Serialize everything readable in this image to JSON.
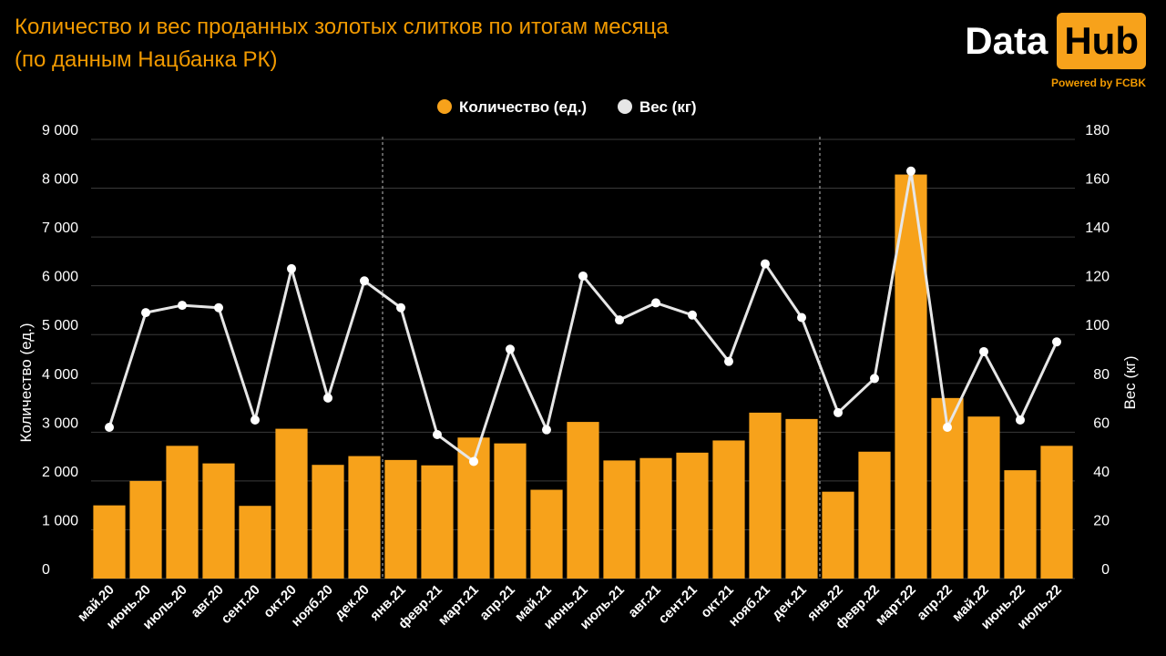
{
  "header": {
    "title_line1": "Количество и вес проданных золотых слитков по итогам месяца",
    "title_line2": "(по данным Нацбанка РК)"
  },
  "logo": {
    "word1": "Data",
    "word2": "Hub",
    "tagline": "Powered by FCBK"
  },
  "colors": {
    "bar": "#f7a21b",
    "line": "#e6e6e6",
    "grid": "#3a3a3a",
    "title": "#f29a00"
  },
  "chart_data": {
    "type": "bar",
    "categories": [
      "май.20",
      "июнь.20",
      "июль.20",
      "авг.20",
      "сент.20",
      "окт.20",
      "нояб.20",
      "дек.20",
      "янв.21",
      "февр.21",
      "март.21",
      "апр.21",
      "май.21",
      "июнь.21",
      "июль.21",
      "авг.21",
      "сент.21",
      "окт.21",
      "нояб.21",
      "дек.21",
      "янв.22",
      "февр.22",
      "март.22",
      "апр.22",
      "май.22",
      "июнь.22",
      "июль.22"
    ],
    "series": [
      {
        "name": "Количество (ед.)",
        "type": "bar",
        "axis": "left",
        "values": [
          1500,
          2000,
          2720,
          2360,
          1490,
          3070,
          2330,
          2510,
          2430,
          2320,
          2890,
          2770,
          1820,
          3210,
          2420,
          2470,
          2580,
          2830,
          3400,
          3270,
          1780,
          2600,
          8280,
          3700,
          3320,
          2220,
          2720
        ]
      },
      {
        "name": "Вес (кг)",
        "type": "line",
        "axis": "right",
        "values": [
          62,
          109,
          112,
          111,
          65,
          127,
          74,
          122,
          111,
          59,
          48,
          94,
          61,
          124,
          106,
          113,
          108,
          89,
          129,
          107,
          68,
          82,
          167,
          62,
          93,
          65,
          97
        ]
      }
    ],
    "y_left": {
      "label": "Количество (ед.)",
      "range": [
        0,
        9000
      ],
      "ticks": [
        "0",
        "1 000",
        "2 000",
        "3 000",
        "4 000",
        "5 000",
        "6 000",
        "7 000",
        "8 000",
        "9 000"
      ]
    },
    "y_right": {
      "label": "Вес (кг)",
      "range": [
        0,
        180
      ],
      "ticks": [
        "0",
        "20",
        "40",
        "60",
        "80",
        "100",
        "120",
        "140",
        "160",
        "180"
      ]
    },
    "year_dividers_after": [
      "дек.20",
      "дек.21"
    ],
    "grid": true,
    "legend": "top-center"
  }
}
